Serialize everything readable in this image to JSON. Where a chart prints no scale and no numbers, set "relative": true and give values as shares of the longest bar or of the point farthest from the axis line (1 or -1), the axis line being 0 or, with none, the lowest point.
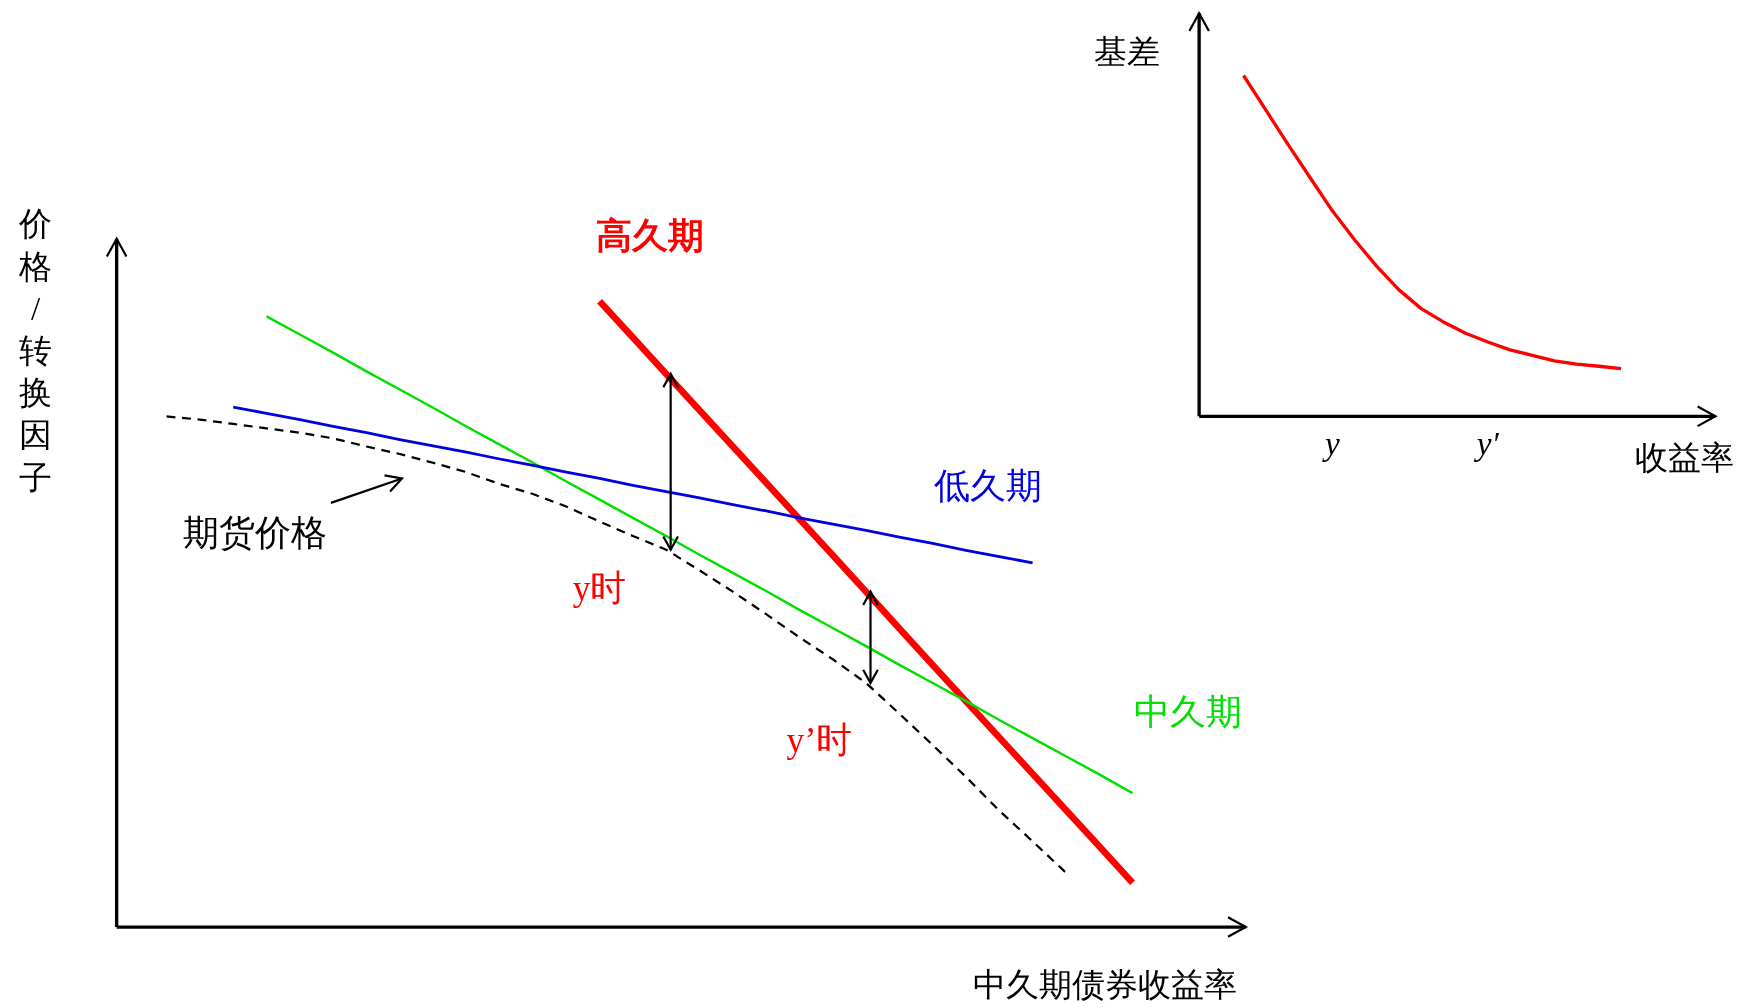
{
  "chart_data": [
    {
      "type": "line",
      "relative": true,
      "xlabel": "中久期债券收益率",
      "ylabel": "价格/转换因子",
      "annotations": [
        "y时",
        "y’时"
      ],
      "categories": [
        null,
        null,
        null,
        null,
        null,
        null,
        null,
        null,
        null,
        null,
        null,
        null,
        null,
        null,
        null,
        null,
        null,
        null,
        null,
        null,
        null,
        null,
        null,
        null,
        null,
        null,
        null,
        null,
        null,
        null,
        null
      ],
      "series": [
        {
          "name": "期货价格",
          "color": "#000000",
          "line_style": "dashed",
          "values": [
            0.816,
            0.811,
            0.804,
            0.797,
            0.79,
            0.781,
            0.768,
            0.756,
            0.742,
            0.727,
            0.708,
            0.692,
            0.672,
            0.648,
            0.625,
            0.603,
            0.57,
            0.536,
            0.5,
            0.463,
            0.428,
            0.39,
            0.341,
            0.291,
            0.24,
            0.186,
            0.137,
            0.087,
            null,
            null,
            null
          ]
        },
        {
          "name": "高久期",
          "color": "#ff0000",
          "line_style": "solid",
          "values": [
            null,
            null,
            null,
            null,
            null,
            null,
            null,
            null,
            null,
            null,
            null,
            null,
            null,
            1.0,
            0.942,
            0.884,
            0.826,
            0.768,
            0.71,
            0.652,
            0.594,
            0.536,
            0.477,
            0.419,
            0.361,
            0.303,
            0.245,
            0.187,
            0.129,
            0.071,
            null
          ]
        },
        {
          "name": "中久期",
          "color": "#00e000",
          "line_style": "solid",
          "values": [
            null,
            null,
            null,
            0.976,
            0.947,
            0.918,
            0.888,
            0.859,
            0.83,
            0.8,
            0.771,
            0.742,
            0.712,
            0.683,
            0.654,
            0.625,
            0.595,
            0.566,
            0.537,
            0.507,
            0.478,
            0.449,
            0.419,
            0.39,
            0.361,
            0.331,
            0.302,
            0.273,
            0.244,
            0.214,
            null
          ]
        },
        {
          "name": "低久期",
          "color": "#0000e0",
          "line_style": "solid",
          "values": [
            null,
            null,
            0.831,
            0.821,
            0.811,
            0.8,
            0.79,
            0.779,
            0.769,
            0.759,
            0.748,
            0.738,
            0.727,
            0.717,
            0.706,
            0.696,
            0.686,
            0.675,
            0.665,
            0.654,
            0.644,
            0.634,
            0.623,
            0.613,
            0.602,
            0.592,
            0.582,
            null,
            null,
            null,
            null
          ]
        }
      ]
    },
    {
      "type": "line",
      "relative": true,
      "tick_labels": "x",
      "xlabel": "收益率",
      "ylabel": "基差",
      "categories": [
        null,
        null,
        null,
        null,
        null,
        null,
        "y",
        null,
        null,
        null,
        null,
        null,
        null,
        "y′",
        null,
        null,
        null,
        null,
        null,
        null,
        null,
        null,
        null,
        null
      ],
      "series": [
        {
          "color": "#ff0000",
          "line_style": "solid",
          "values": [
            null,
            null,
            1.0,
            0.899,
            0.798,
            0.7,
            0.603,
            0.518,
            0.44,
            0.371,
            0.316,
            0.277,
            0.244,
            0.218,
            0.195,
            0.179,
            0.163,
            0.153,
            0.147,
            0.14,
            null,
            null,
            null,
            null
          ]
        }
      ]
    }
  ]
}
